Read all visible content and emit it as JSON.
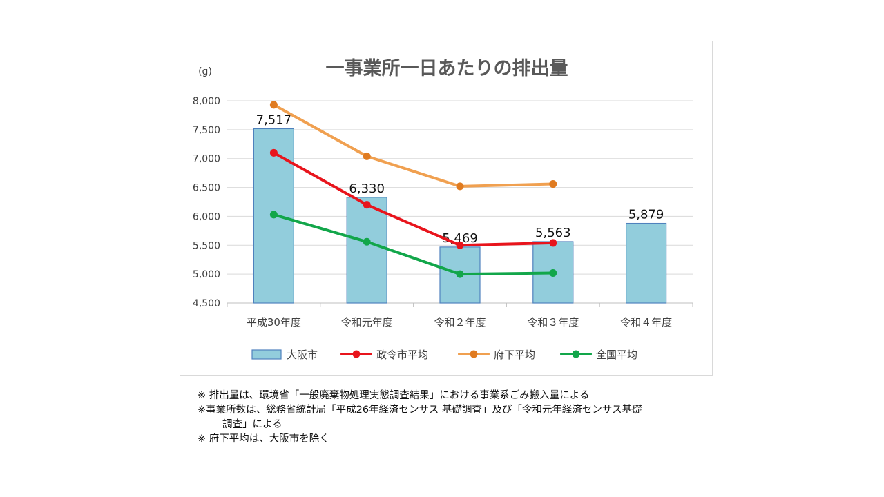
{
  "chart_data": {
    "type": "bar",
    "title": "一事業所一日あたりの排出量",
    "ylabel": "(g)",
    "xlabel": "",
    "categories": [
      "平成30年度",
      "令和元年度",
      "令和２年度",
      "令和３年度",
      "令和４年度"
    ],
    "ylim": [
      4500,
      8000
    ],
    "yticks": [
      4500,
      5000,
      5500,
      6000,
      6500,
      7000,
      7500,
      8000
    ],
    "ytick_labels": [
      "4,500",
      "5,000",
      "5,500",
      "6,000",
      "6,500",
      "7,000",
      "7,500",
      "8,000"
    ],
    "grid": true,
    "legend_position": "bottom",
    "bar_series": {
      "name": "大阪市",
      "color": "#92cddc",
      "border_color": "#4f81bd",
      "values": [
        7517,
        6330,
        5469,
        5563,
        5879
      ],
      "labels": [
        "7,517",
        "6,330",
        "5,469",
        "5,563",
        "5,879"
      ]
    },
    "line_series": [
      {
        "name": "政令市平均",
        "color": "#e8141c",
        "values": [
          7100,
          6200,
          5500,
          5540,
          null
        ]
      },
      {
        "name": "府下平均",
        "color": "#f0a050",
        "marker_color": "#e07b20",
        "values": [
          7930,
          7040,
          6520,
          6560,
          null
        ]
      },
      {
        "name": "全国平均",
        "color": "#12a64a",
        "values": [
          6030,
          5560,
          5000,
          5020,
          null
        ]
      }
    ]
  },
  "notes": [
    "※ 排出量は、環境省「一般廃棄物処理実態調査結果」における事業系ごみ搬入量による",
    "※事業所数は、総務省統計局「平成26年経済センサス 基礎調査」及び「令和元年経済センサス基礎",
    "調査」による",
    "※ 府下平均は、大阪市を除く"
  ]
}
